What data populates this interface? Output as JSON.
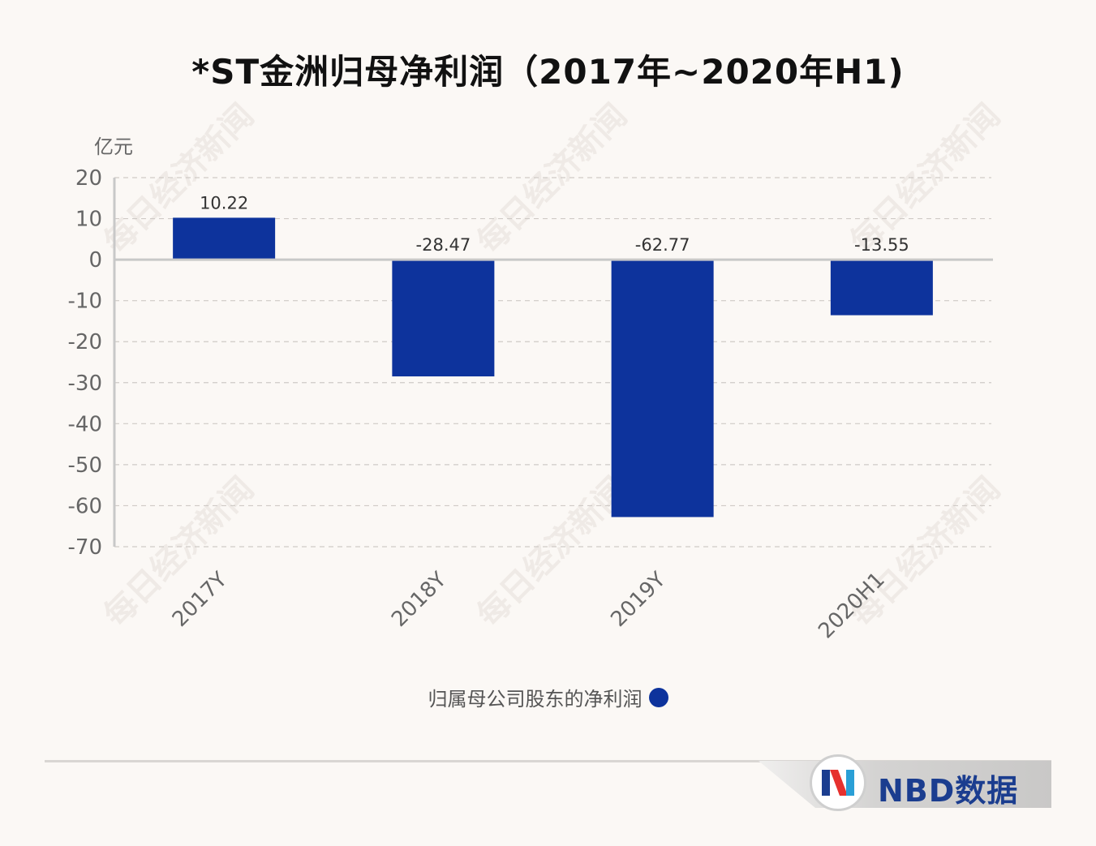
{
  "chart_data": {
    "type": "bar",
    "title": "*ST金洲归母净利润（2017年~2020年H1)",
    "unit_label": "亿元",
    "categories": [
      "2017Y",
      "2018Y",
      "2019Y",
      "2020H1"
    ],
    "series": [
      {
        "name": "归属母公司股东的净利润",
        "values": [
          10.22,
          -28.47,
          -62.77,
          -13.55
        ],
        "labels": [
          "10.22",
          "-28.47",
          "-62.77",
          "-13.55"
        ],
        "color": "#0d339c"
      }
    ],
    "ylim": [
      -70,
      20
    ],
    "yticks": [
      20,
      10,
      0,
      -10,
      -20,
      -30,
      -40,
      -50,
      -60,
      -70
    ],
    "grid": true,
    "legend_position": "bottom"
  },
  "watermark": "每日经济新闻",
  "brand": {
    "text": "NBD数据"
  }
}
